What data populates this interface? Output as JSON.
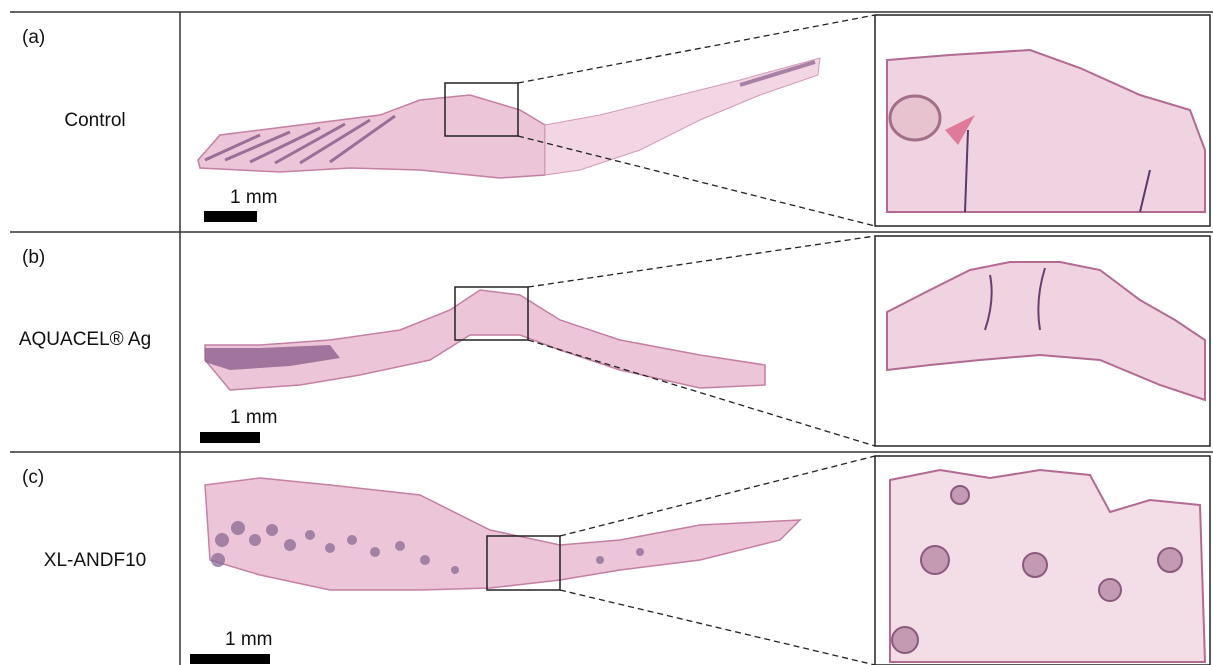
{
  "panels": [
    {
      "label": "(a)",
      "name": "Control",
      "scale": "1 mm"
    },
    {
      "label": "(b)",
      "name": "AQUACEL® Ag",
      "scale": "1 mm"
    },
    {
      "label": "(c)",
      "name": "XL-ANDF10",
      "scale": "1 mm"
    }
  ]
}
